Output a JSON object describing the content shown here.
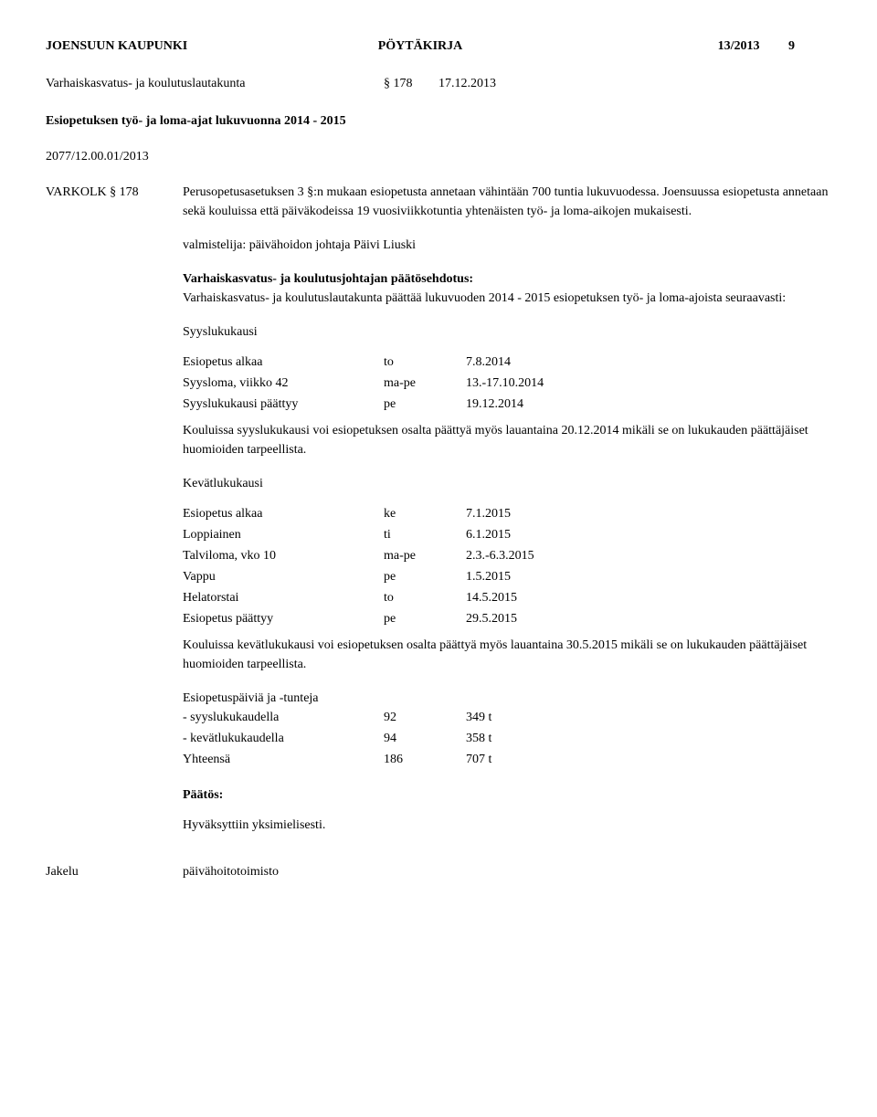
{
  "header": {
    "left": "JOENSUUN KAUPUNKI",
    "center": "PÖYTÄKIRJA",
    "right_num": "13/2013",
    "right_page": "9"
  },
  "subheader": {
    "board": "Varhaiskasvatus- ja koulutuslautakunta",
    "section": "§ 178",
    "date": "17.12.2013"
  },
  "title": "Esiopetuksen työ- ja loma-ajat lukuvuonna 2014 - 2015",
  "reference": "2077/12.00.01/2013",
  "varkolk_label": "VARKOLK § 178",
  "intro_p1": "Perusopetusasetuksen 3 §:n mukaan esiopetusta annetaan vähintään 700 tuntia lukuvuodessa. Joensuussa esiopetusta annetaan sekä kouluissa että päiväkodeissa 19 vuosiviikkotuntia yhtenäisten työ- ja loma-aikojen mukaisesti.",
  "preparer": "valmistelija: päivähoidon johtaja Päivi Liuski",
  "proposal_heading": "Varhaiskasvatus- ja koulutusjohtajan päätösehdotus:",
  "proposal_body": "Varhaiskasvatus- ja koulutuslautakunta päättää lukuvuoden 2014 - 2015 esiopetuksen työ- ja loma-ajoista seuraavasti:",
  "autumn": {
    "heading": "Syyslukukausi",
    "rows": [
      {
        "label": "Esiopetus alkaa",
        "day": "to",
        "date": "7.8.2014"
      },
      {
        "label": "Syysloma, viikko 42",
        "day": "ma-pe",
        "date": "13.-17.10.2014"
      },
      {
        "label": "Syyslukukausi päättyy",
        "day": "pe",
        "date": "19.12.2014"
      }
    ],
    "note": "Kouluissa syyslukukausi voi esiopetuksen osalta päättyä myös lauantaina 20.12.2014 mikäli se on lukukauden päättäjäiset huomioiden tarpeellista."
  },
  "spring": {
    "heading": "Kevätlukukausi",
    "rows": [
      {
        "label": "Esiopetus alkaa",
        "day": "ke",
        "date": "7.1.2015"
      },
      {
        "label": "Loppiainen",
        "day": "ti",
        "date": "6.1.2015"
      },
      {
        "label": "Talviloma, vko 10",
        "day": "ma-pe",
        "date": "2.3.-6.3.2015"
      },
      {
        "label": "Vappu",
        "day": "pe",
        "date": "1.5.2015"
      },
      {
        "label": "Helatorstai",
        "day": "to",
        "date": "14.5.2015"
      },
      {
        "label": "Esiopetus päättyy",
        "day": "pe",
        "date": "29.5.2015"
      }
    ],
    "note": "Kouluissa kevätlukukausi voi esiopetuksen osalta päättyä myös lauantaina 30.5.2015 mikäli se on lukukauden päättäjäiset huomioiden tarpeellista."
  },
  "totals": {
    "heading": "Esiopetuspäiviä ja -tunteja",
    "rows": [
      {
        "label": "- syyslukukaudella",
        "days": "92",
        "hours": "349 t"
      },
      {
        "label": "- kevätlukukaudella",
        "days": "94",
        "hours": "358 t"
      },
      {
        "label": "Yhteensä",
        "days": "186",
        "hours": "707 t"
      }
    ]
  },
  "decision_heading": "Päätös:",
  "decision_body": "Hyväksyttiin yksimielisesti.",
  "distribution_label": "Jakelu",
  "distribution_value": "päivähoitotoimisto"
}
